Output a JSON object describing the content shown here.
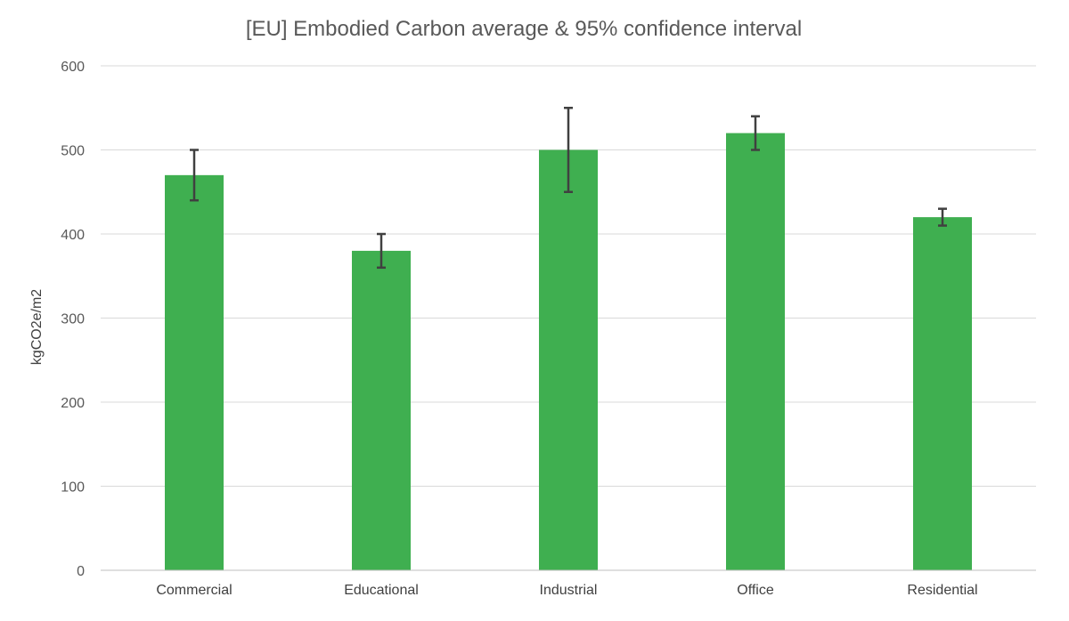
{
  "chart_data": {
    "type": "bar",
    "title": "[EU] Embodied Carbon average & 95% confidence interval",
    "xlabel": "",
    "ylabel": "kgCO2e/m2",
    "categories": [
      "Commercial",
      "Educational",
      "Industrial",
      "Office",
      "Residential"
    ],
    "series": [
      {
        "values": [
          470,
          380,
          500,
          520,
          420
        ],
        "error_low": [
          440,
          360,
          450,
          500,
          410
        ],
        "error_high": [
          500,
          400,
          550,
          540,
          430
        ]
      }
    ],
    "ylim": [
      0,
      600
    ],
    "yticks": [
      0,
      100,
      200,
      300,
      400,
      500,
      600
    ],
    "grid": true,
    "legend": "none",
    "colors": {
      "bar": "#3faf50",
      "error_bar": "#404040",
      "grid": "#d9d9d9",
      "text": "#595959"
    }
  }
}
